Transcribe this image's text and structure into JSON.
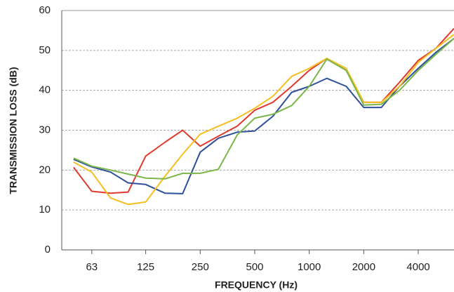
{
  "chart_data": {
    "type": "line",
    "x_label": "FREQUENCY (Hz)",
    "y_label": "TRANSMISSION LOSS (dB)",
    "x": [
      50,
      63,
      80,
      100,
      125,
      160,
      200,
      250,
      315,
      400,
      500,
      630,
      800,
      1000,
      1250,
      1600,
      2000,
      2500,
      3150,
      4000,
      5000,
      6300
    ],
    "xlim": [
      43,
      6300
    ],
    "xticks": [
      63,
      125,
      250,
      500,
      1000,
      2000,
      4000
    ],
    "xscale": "log",
    "ylim": [
      0,
      60
    ],
    "yticks": [
      0,
      10,
      20,
      30,
      40,
      50,
      60
    ],
    "grid": true,
    "series": [
      {
        "color": "#e03a2e",
        "values": [
          20.7,
          14.7,
          14.2,
          14.5,
          23.5,
          27,
          30,
          26,
          28.5,
          31,
          35,
          37,
          41,
          45,
          48,
          45,
          37,
          37,
          42,
          47.5,
          50.5,
          55.5
        ]
      },
      {
        "color": "#2e4f9a",
        "values": [
          22.7,
          20.8,
          19.5,
          16.8,
          16.4,
          14.2,
          14.1,
          24.5,
          28,
          29.5,
          29.8,
          33.5,
          39.5,
          41,
          43,
          41,
          35.7,
          35.7,
          41,
          45.5,
          49.5,
          53
        ]
      },
      {
        "color": "#f5bf1f",
        "values": [
          22,
          19.5,
          13,
          11.4,
          12,
          18.5,
          24,
          29,
          31,
          33,
          35.5,
          38.5,
          43.5,
          45.5,
          48,
          45.5,
          37,
          37,
          41,
          47,
          50.5,
          54
        ]
      },
      {
        "color": "#7ab648",
        "values": [
          23,
          21,
          20,
          19,
          18,
          17.8,
          19.2,
          19.2,
          20.2,
          28.8,
          33,
          34,
          36.2,
          41,
          47.8,
          45,
          36.3,
          36.5,
          40,
          45,
          49,
          53
        ]
      }
    ]
  }
}
